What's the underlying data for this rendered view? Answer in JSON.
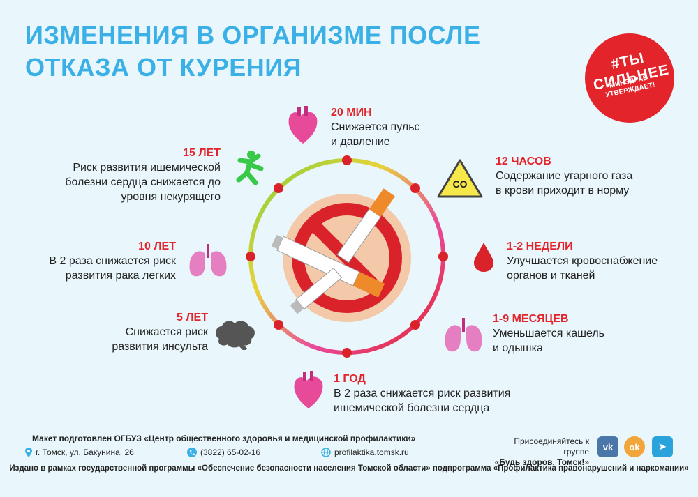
{
  "title": {
    "line1": "ИЗМЕНЕНИЯ В ОРГАНИЗМЕ ПОСЛЕ",
    "line2": "ОТКАЗА ОТ КУРЕНИЯ"
  },
  "badge": {
    "hashtag": "#ТЫ СИЛЬНЕЕ",
    "line2": "МИНЗДРАВ УТВЕРЖДАЕТ!"
  },
  "stages": [
    {
      "time": "20 МИН",
      "text1": "Снижается пульс",
      "text2": "и давление"
    },
    {
      "time": "12 ЧАСОВ",
      "text1": "Содержание угарного газа",
      "text2": "в крови приходит в норму"
    },
    {
      "time": "1-2 НЕДЕЛИ",
      "text1": "Улучшается кровоснабжение",
      "text2": "органов и тканей"
    },
    {
      "time": "1-9 МЕСЯЦЕВ",
      "text1": "Уменьшается кашель",
      "text2": "и одышка"
    },
    {
      "time": "1 ГОД",
      "text1": "В 2 раза снижается риск развития",
      "text2": "ишемической болезни сердца"
    },
    {
      "time": "5 ЛЕТ",
      "text1": "Снижается риск",
      "text2": "развития инсульта"
    },
    {
      "time": "10 ЛЕТ",
      "text1": "В 2 раза снижается риск",
      "text2": "развития рака легких"
    },
    {
      "time": "15 ЛЕТ",
      "text1": "Риск развития ишемической",
      "text2": "болезни сердца снижается до",
      "text3": "уровня некурящего"
    }
  ],
  "co_label": "CO",
  "footer": {
    "maker": "Макет  подготовлен  ОГБУЗ «Центр общественного здоровья и медицинской профилактики»",
    "address": "г. Томск, ул. Бакунина, 26",
    "phone": "(3822) 65-02-16",
    "site": "profilaktika.tomsk.ru",
    "join1": "Присоединяйтесь к группе",
    "join2": "«Будь здоров, Томск!»",
    "program": "Издано в рамках государственной программы «Обеспечение безопасности населения Томской области» подпрограмма «Профилактика правонарушений и наркомании»"
  },
  "social": {
    "vk": "vk",
    "ok": "ok",
    "tg": "➤"
  }
}
